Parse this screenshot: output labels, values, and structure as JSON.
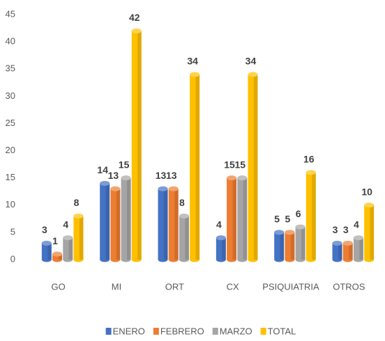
{
  "chart_data": {
    "type": "bar",
    "categories": [
      "GO",
      "MI",
      "ORT",
      "CX",
      "PSIQUIATRIA",
      "OTROS"
    ],
    "series": [
      {
        "name": "ENERO",
        "color": "#4472c4",
        "values": [
          3,
          14,
          13,
          4,
          5,
          3
        ]
      },
      {
        "name": "FEBRERO",
        "color": "#ed7d31",
        "values": [
          1,
          13,
          13,
          15,
          5,
          3
        ]
      },
      {
        "name": "MARZO",
        "color": "#a5a5a5",
        "values": [
          4,
          15,
          8,
          15,
          6,
          4
        ]
      },
      {
        "name": "TOTAL",
        "color": "#ffc000",
        "values": [
          8,
          42,
          34,
          34,
          16,
          10
        ]
      }
    ],
    "ylim": [
      0,
      45
    ],
    "yticks": [
      0,
      5,
      10,
      15,
      20,
      25,
      30,
      35,
      40,
      45
    ],
    "grid": false,
    "legend": "bottom"
  }
}
